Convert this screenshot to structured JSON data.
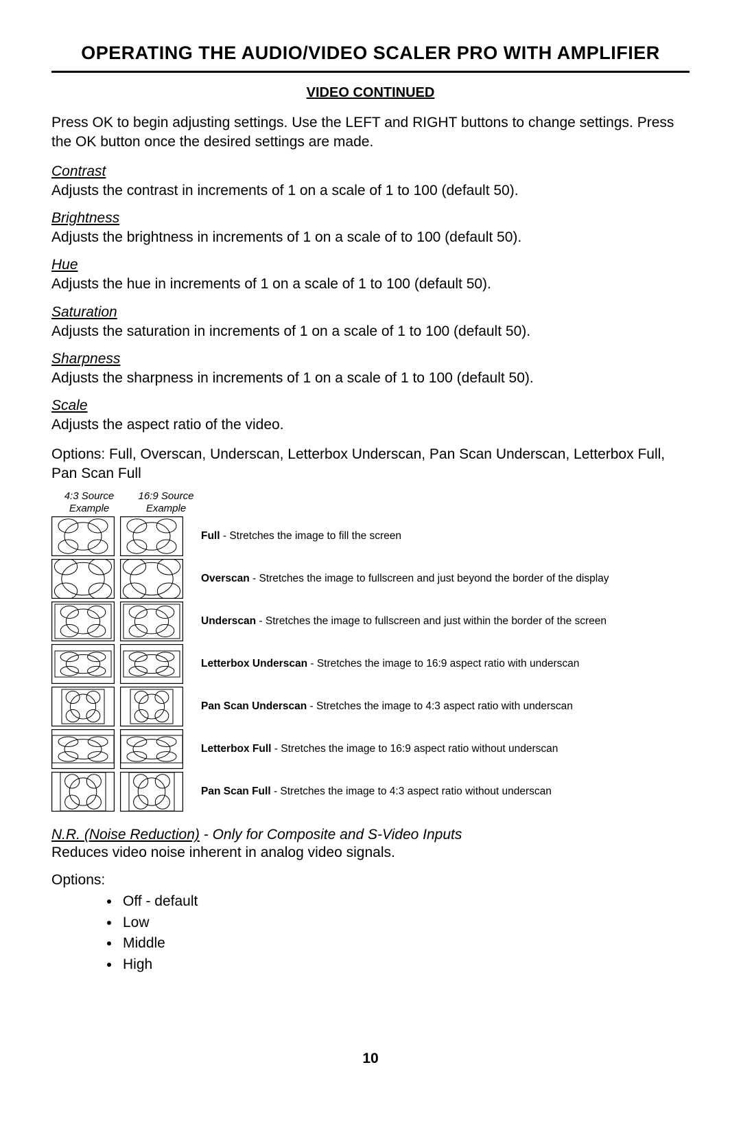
{
  "mainTitle": "OPERATING THE AUDIO/VIDEO SCALER PRO WITH AMPLIFIER",
  "subTitle": "VIDEO CONTINUED",
  "intro": "Press OK to begin adjusting settings. Use the LEFT and RIGHT buttons to change settings. Press the OK button once the desired settings are made.",
  "settings": [
    {
      "label": "Contrast",
      "desc": "Adjusts the contrast in increments of 1 on a scale of 1 to 100 (default 50)."
    },
    {
      "label": "Brightness",
      "desc": "Adjusts the brightness in increments of 1 on a scale of  to 100 (default 50)."
    },
    {
      "label": "Hue",
      "desc": "Adjusts the hue in increments of 1 on a scale of 1 to 100 (default 50)."
    },
    {
      "label": "Saturation",
      "desc": "Adjusts the saturation in increments of 1 on a scale of 1 to 100 (default 50)."
    },
    {
      "label": "Sharpness",
      "desc": "Adjusts the sharpness in increments of 1 on a scale of 1 to 100 (default 50)."
    }
  ],
  "scale": {
    "label": "Scale",
    "desc": "Adjusts the aspect ratio of the video.",
    "optionsLine": "Options: Full, Overscan, Underscan, Letterbox Underscan, Pan Scan Underscan, Letterbox Full, Pan Scan Full",
    "colLabels": [
      "4:3 Source Example",
      "16:9 Source Example"
    ],
    "thumbSize": {
      "w": 92,
      "h": 58,
      "stroke": "#000000",
      "strokeWidth": 1,
      "bg": "#ffffff"
    },
    "rows": [
      {
        "name": "Full",
        "desc": "Stretches the image to fill the screen",
        "a": {
          "type": "full",
          "pattern": "43"
        },
        "b": {
          "type": "full",
          "pattern": "169"
        }
      },
      {
        "name": "Overscan",
        "desc": "Stretches the image to fullscreen and just beyond the border of the display",
        "a": {
          "type": "overscan",
          "pattern": "43"
        },
        "b": {
          "type": "overscan",
          "pattern": "169"
        }
      },
      {
        "name": "Underscan",
        "desc": "Stretches the image to fullscreen and just within the border of the screen",
        "a": {
          "type": "underscan",
          "pattern": "43"
        },
        "b": {
          "type": "underscan",
          "pattern": "169"
        }
      },
      {
        "name": "Letterbox Underscan",
        "desc": "Stretches the image to 16:9 aspect ratio with underscan",
        "a": {
          "type": "letterbox-under",
          "pattern": "43"
        },
        "b": {
          "type": "letterbox-under",
          "pattern": "169"
        }
      },
      {
        "name": "Pan Scan Underscan",
        "desc": "Stretches the image to 4:3 aspect ratio with underscan",
        "a": {
          "type": "panscan-under",
          "pattern": "43"
        },
        "b": {
          "type": "panscan-under",
          "pattern": "169"
        }
      },
      {
        "name": "Letterbox Full",
        "desc": "Stretches the image to 16:9 aspect ratio without underscan",
        "a": {
          "type": "letterbox-full",
          "pattern": "43"
        },
        "b": {
          "type": "letterbox-full",
          "pattern": "169"
        }
      },
      {
        "name": "Pan Scan Full",
        "desc": "Stretches the image to 4:3 aspect ratio without underscan",
        "a": {
          "type": "panscan-full",
          "pattern": "43"
        },
        "b": {
          "type": "panscan-full",
          "pattern": "169"
        }
      }
    ]
  },
  "nr": {
    "headingUnderlined": "N.R. (Noise Reduction)",
    "headingRest": " - Only for Composite and S-Video Inputs",
    "desc": "Reduces video noise inherent in analog video signals.",
    "optionsLabel": "Options:",
    "options": [
      "Off - default",
      "Low",
      "Middle",
      "High"
    ]
  },
  "pageNumber": "10"
}
